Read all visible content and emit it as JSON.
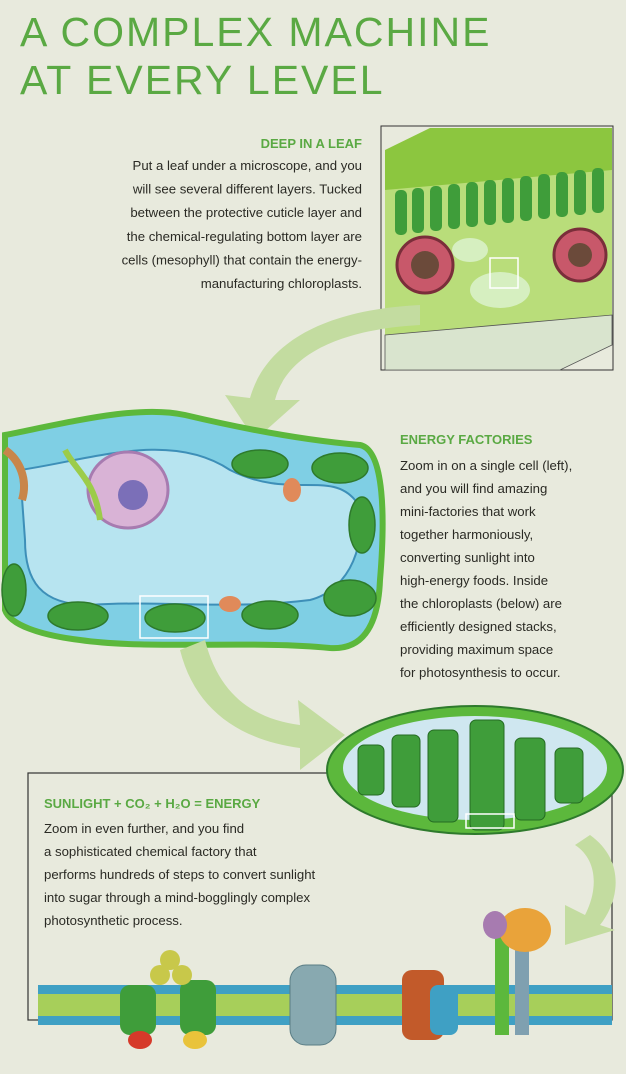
{
  "header": {
    "title_lines": [
      "A COMPLEX MACHINE",
      "AT EVERY LEVEL"
    ]
  },
  "sections": [
    {
      "heading": "DEEP IN A LEAF",
      "lines": [
        "Put a leaf under a microscope, and you",
        "will see several different layers. Tucked",
        "between the protective cuticle layer and",
        "the chemical-regulating bottom layer are",
        "cells (mesophyll) that contain the energy-",
        "manufacturing chloroplasts."
      ]
    },
    {
      "heading": "ENERGY FACTORIES",
      "lines": [
        "Zoom in on a single cell (left),",
        "and you will find amazing",
        "mini-factories that work",
        "together harmoniously,",
        "converting sunlight into",
        "high-energy foods. Inside",
        "the chloroplasts (below) are",
        "efficiently designed stacks,",
        "providing maximum space",
        "for photosynthesis to occur."
      ]
    },
    {
      "heading": "SUNLIGHT + CO₂ + H₂O = ENERGY",
      "lines": [
        "Zoom in even further, and you find",
        "a sophisticated chemical factory that",
        "performs hundreds of steps to convert sunlight",
        "into sugar through a mind-bogglingly complex",
        "photosynthetic process."
      ]
    }
  ]
}
